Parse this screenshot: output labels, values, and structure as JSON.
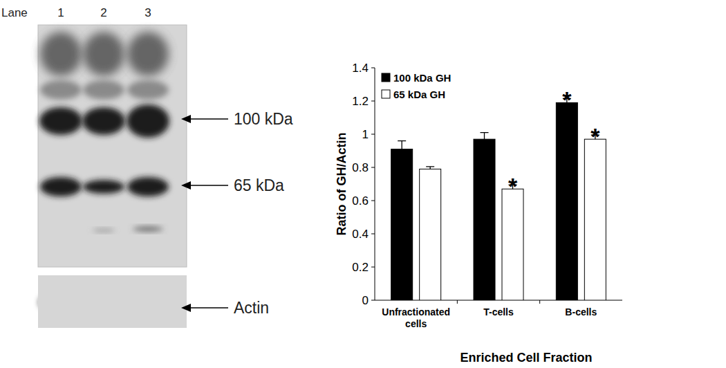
{
  "blot": {
    "lane_title": "Lane",
    "lanes": [
      "1",
      "2",
      "3"
    ],
    "markers": [
      "100 kDa",
      "65 kDa"
    ],
    "loading_control": "Actin"
  },
  "chart_data": {
    "type": "bar",
    "x_label": "Enriched Cell Fraction",
    "y_label": "Ratio of GH/Actin",
    "categories": [
      "Unfractionated cells",
      "T-cells",
      "B-cells"
    ],
    "series": [
      {
        "name": "100 kDa GH",
        "color": "#000000",
        "values": [
          0.91,
          0.97,
          1.19
        ],
        "errors": [
          0.05,
          0.04,
          0.025
        ],
        "annotations": [
          null,
          null,
          "*"
        ]
      },
      {
        "name": "65 kDa GH",
        "color": "#ffffff",
        "values": [
          0.79,
          0.67,
          0.97
        ],
        "errors": [
          0.015,
          0.025,
          0.025
        ],
        "annotations": [
          null,
          "*",
          "*"
        ]
      }
    ],
    "ylim": [
      0,
      1.4
    ],
    "yticks": [
      0,
      0.2,
      0.4,
      0.6,
      0.8,
      1,
      1.2,
      1.4
    ],
    "grid": false,
    "legend": "upper left"
  }
}
